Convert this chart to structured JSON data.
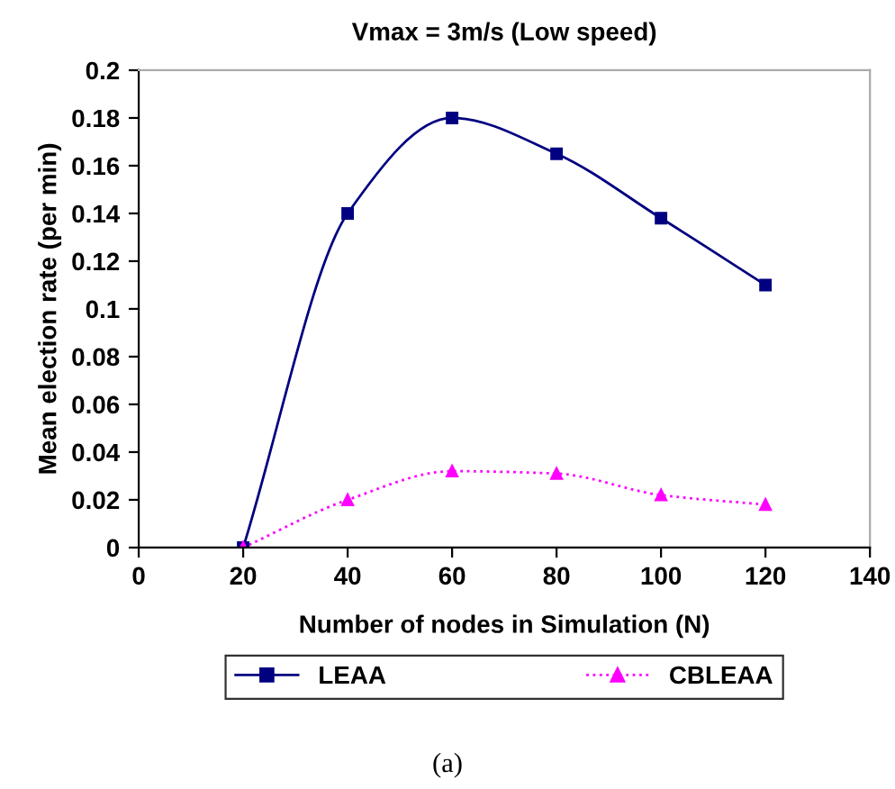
{
  "chart_data": {
    "type": "line",
    "title": "Vmax = 3m/s (Low speed)",
    "xlabel": "Number of nodes in Simulation (N)",
    "ylabel": "Mean election rate (per min)",
    "x": [
      20,
      40,
      60,
      80,
      100,
      120
    ],
    "series": [
      {
        "name": "LEAA",
        "color": "#000080",
        "marker": "square",
        "line_style": "solid",
        "values": [
          0,
          0.14,
          0.18,
          0.165,
          0.138,
          0.11
        ]
      },
      {
        "name": "CBLEAA",
        "color": "#ff00ff",
        "marker": "triangle",
        "line_style": "dotted",
        "values": [
          0,
          0.02,
          0.032,
          0.031,
          0.022,
          0.018
        ]
      }
    ],
    "xlim": [
      0,
      140
    ],
    "xticks": [
      0,
      20,
      40,
      60,
      80,
      100,
      120,
      140
    ],
    "ylim": [
      0,
      0.2
    ],
    "yticks": [
      0,
      0.02,
      0.04,
      0.06,
      0.08,
      0.1,
      0.12,
      0.14,
      0.16,
      0.18,
      0.2
    ],
    "grid": false,
    "legend": "bottom",
    "annotations": [
      "(a)"
    ]
  }
}
